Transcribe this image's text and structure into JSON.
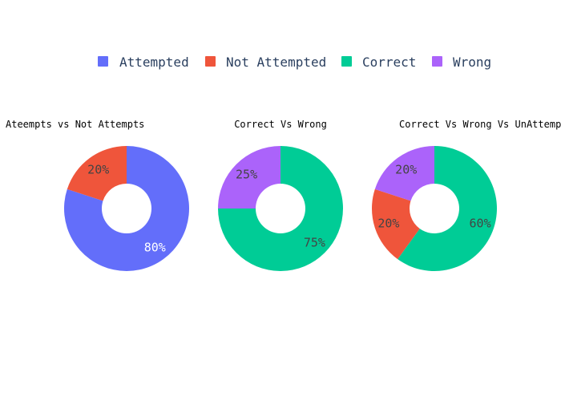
{
  "legend": [
    {
      "label": "Attempted",
      "color": "#636efa"
    },
    {
      "label": "Not Attempted",
      "color": "#ef553b"
    },
    {
      "label": "Correct",
      "color": "#00cc96"
    },
    {
      "label": "Wrong",
      "color": "#ab63fa"
    }
  ],
  "chart_data": [
    {
      "type": "pie",
      "title": "Ateempts vs Not Attempts",
      "hole": true,
      "slices": [
        {
          "label": "Attempted",
          "value": 80,
          "text": "80%",
          "color": "#636efa"
        },
        {
          "label": "Not Attempted",
          "value": 20,
          "text": "20%",
          "color": "#ef553b"
        }
      ]
    },
    {
      "type": "pie",
      "title": "Correct Vs Wrong",
      "hole": true,
      "slices": [
        {
          "label": "Correct",
          "value": 75,
          "text": "75%",
          "color": "#00cc96"
        },
        {
          "label": "Wrong",
          "value": 25,
          "text": "25%",
          "color": "#ab63fa"
        }
      ]
    },
    {
      "type": "pie",
      "title": "Correct Vs Wrong Vs UnAttempted",
      "hole": true,
      "slices": [
        {
          "label": "Correct",
          "value": 60,
          "text": "60%",
          "color": "#00cc96"
        },
        {
          "label": "Not Attempted",
          "value": 20,
          "text": "20%",
          "color": "#ef553b"
        },
        {
          "label": "Wrong",
          "value": 20,
          "text": "20%",
          "color": "#ab63fa"
        }
      ]
    }
  ]
}
